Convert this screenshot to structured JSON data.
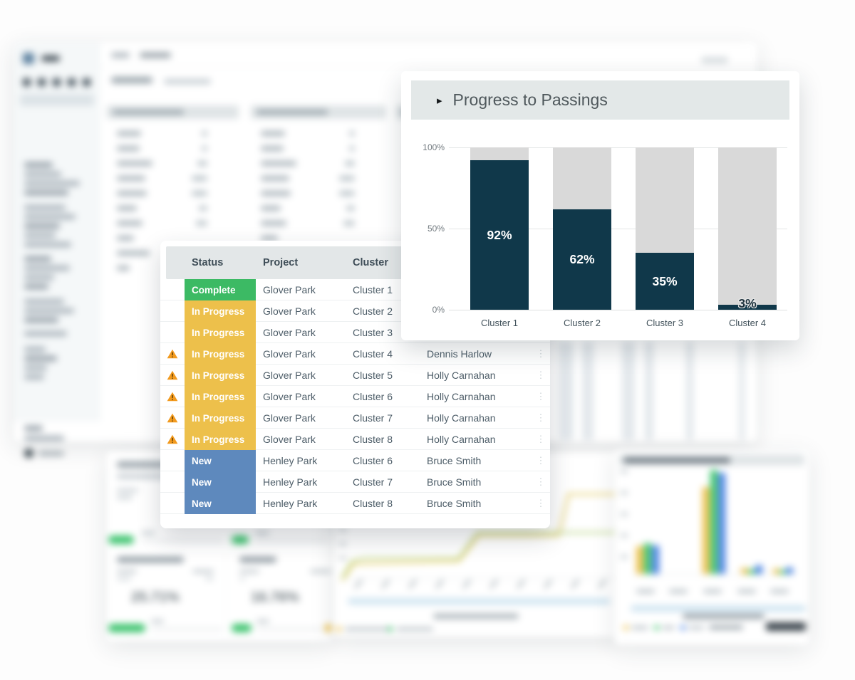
{
  "chart_panel": {
    "title": "Progress to Passings",
    "expand_icon": "▸"
  },
  "chart_data": {
    "type": "bar",
    "title": "Progress to Passings",
    "categories": [
      "Cluster 1",
      "Cluster 2",
      "Cluster 3",
      "Cluster 4"
    ],
    "values": [
      92,
      62,
      35,
      3
    ],
    "value_labels": [
      "92%",
      "62%",
      "35%",
      "3%"
    ],
    "ylabel": "",
    "xlabel": "",
    "ylim": [
      0,
      100
    ],
    "yticks": [
      "100%",
      "50%",
      "0%"
    ],
    "legend": "none",
    "grid": "horizontal",
    "bar_color": "#10384a",
    "track_color": "#d9d9d9"
  },
  "status_table": {
    "headers": {
      "status": "Status",
      "project": "Project",
      "cluster": "Cluster"
    },
    "kebab_glyph": "⋮",
    "rows": [
      {
        "warning": false,
        "status": "Complete",
        "status_type": "complete",
        "project": "Glover Park",
        "cluster": "Cluster 1",
        "owner": ""
      },
      {
        "warning": false,
        "status": "In Progress",
        "status_type": "in_progress",
        "project": "Glover Park",
        "cluster": "Cluster 2",
        "owner": ""
      },
      {
        "warning": false,
        "status": "In Progress",
        "status_type": "in_progress",
        "project": "Glover Park",
        "cluster": "Cluster 3",
        "owner": ""
      },
      {
        "warning": true,
        "status": "In Progress",
        "status_type": "in_progress",
        "project": "Glover Park",
        "cluster": "Cluster 4",
        "owner": "Dennis Harlow"
      },
      {
        "warning": true,
        "status": "In Progress",
        "status_type": "in_progress",
        "project": "Glover Park",
        "cluster": "Cluster 5",
        "owner": "Holly Carnahan"
      },
      {
        "warning": true,
        "status": "In Progress",
        "status_type": "in_progress",
        "project": "Glover Park",
        "cluster": "Cluster 6",
        "owner": "Holly Carnahan"
      },
      {
        "warning": true,
        "status": "In Progress",
        "status_type": "in_progress",
        "project": "Glover Park",
        "cluster": "Cluster 7",
        "owner": "Holly Carnahan"
      },
      {
        "warning": true,
        "status": "In Progress",
        "status_type": "in_progress",
        "project": "Glover Park",
        "cluster": "Cluster 8",
        "owner": "Holly Carnahan"
      },
      {
        "warning": false,
        "status": "New",
        "status_type": "new",
        "project": "Henley Park",
        "cluster": "Cluster 6",
        "owner": "Bruce Smith"
      },
      {
        "warning": false,
        "status": "New",
        "status_type": "new",
        "project": "Henley Park",
        "cluster": "Cluster 7",
        "owner": "Bruce Smith"
      },
      {
        "warning": false,
        "status": "New",
        "status_type": "new",
        "project": "Henley Park",
        "cluster": "Cluster 8",
        "owner": "Bruce Smith"
      }
    ]
  },
  "background_kpis": {
    "value_1": "25.71%",
    "value_2": "16.76%"
  },
  "colors": {
    "status": {
      "complete": "#3cba64",
      "in_progress": "#edc04b",
      "new": "#5e89bd"
    },
    "bar": "#10384a",
    "track": "#d9d9d9",
    "panel_header_bg": "#e3e8e8",
    "warning_icon": "#f29a1e",
    "kpi_green": "#3ec46f",
    "legend_yellow": "#edc04b",
    "legend_green": "#3ec46d",
    "legend_blue": "#4a82e4"
  }
}
